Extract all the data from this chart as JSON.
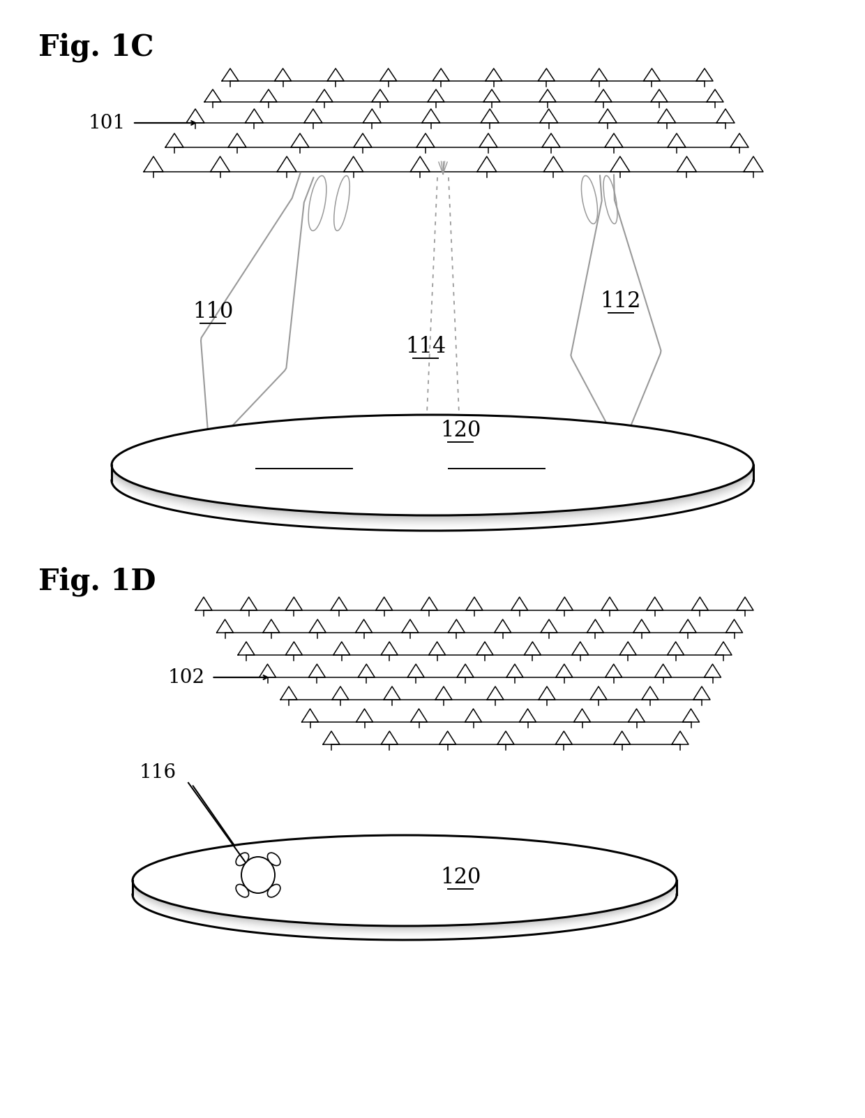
{
  "fig1c_title": "Fig. 1C",
  "fig1d_title": "Fig. 1D",
  "label_101": "101",
  "label_102": "102",
  "label_110": "110",
  "label_112": "112",
  "label_114": "114",
  "label_116": "116",
  "label_120_1c": "120",
  "label_120_1d": "120",
  "bg_color": "#ffffff",
  "line_color": "#000000",
  "gray_color": "#999999",
  "light_gray": "#bbbbbb"
}
